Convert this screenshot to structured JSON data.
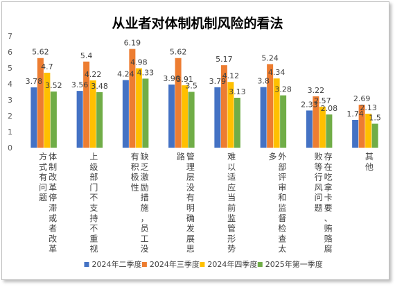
{
  "chart_data": {
    "type": "bar",
    "title": "从业者对体制机制风险的看法",
    "categories": [
      "体制改革停滞或者改革方式有问题",
      "上级部门不支持不重视",
      "缺乏激励措施，员工没有积极性",
      "管理层没有明确发展思路",
      "难以适应当前监管形势",
      "外部评审和监督检查太多",
      "存在吃拿卡要、贿赂腐败等行风问题",
      "其他"
    ],
    "series": [
      {
        "name": "2024年二季度",
        "color": "#4472c4",
        "values": [
          3.78,
          3.56,
          4.24,
          3.96,
          3.79,
          3.8,
          2.33,
          1.74
        ]
      },
      {
        "name": "2024年三季度",
        "color": "#ed7d31",
        "values": [
          5.62,
          5.4,
          6.19,
          5.62,
          5.17,
          5.24,
          3.22,
          2.69
        ]
      },
      {
        "name": "2024年四季度",
        "color": "#ffc000",
        "values": [
          4.7,
          4.22,
          4.98,
          3.91,
          4.12,
          4.34,
          2.57,
          2.13
        ]
      },
      {
        "name": "2025年第一季度",
        "color": "#70ad47",
        "values": [
          3.52,
          3.48,
          4.33,
          3.5,
          3.13,
          3.28,
          2.08,
          1.5
        ]
      }
    ],
    "ylim": [
      0,
      7
    ],
    "yticks": [
      0,
      1,
      2,
      3,
      4,
      5,
      6,
      7
    ],
    "legend_position": "bottom",
    "grid": false
  }
}
